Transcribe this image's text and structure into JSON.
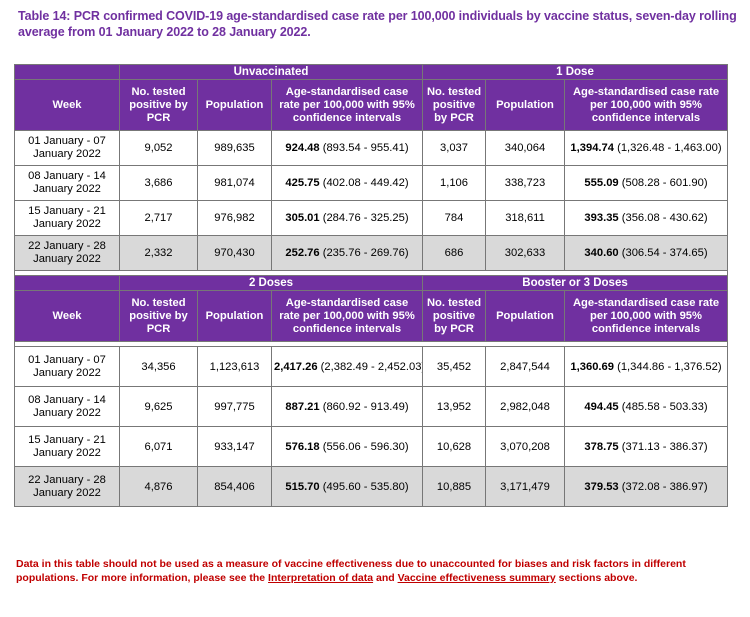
{
  "title": "Table 14: PCR confirmed COVID-19 age-standardised case rate per 100,000 individuals by vaccine status, seven-day rolling average from 01 January 2022 to 28 January 2022.",
  "column_headers": {
    "week": "Week",
    "tested": "No. tested positive by PCR",
    "population": "Population",
    "rate": "Age-standardised case rate per 100,000 with 95% confidence intervals"
  },
  "sections": [
    {
      "groups": [
        "Unvaccinated",
        "1 Dose"
      ],
      "rows": [
        {
          "week": "01 January - 07 January 2022",
          "a_tested": "9,052",
          "a_pop": "989,635",
          "a_rate": "924.48",
          "a_ci": "(893.54 - 955.41)",
          "b_tested": "3,037",
          "b_pop": "340,064",
          "b_rate": "1,394.74",
          "b_ci": "(1,326.48 - 1,463.00)"
        },
        {
          "week": "08 January - 14 January 2022",
          "a_tested": "3,686",
          "a_pop": "981,074",
          "a_rate": "425.75",
          "a_ci": "(402.08 - 449.42)",
          "b_tested": "1,106",
          "b_pop": "338,723",
          "b_rate": "555.09",
          "b_ci": "(508.28 - 601.90)"
        },
        {
          "week": "15 January - 21 January 2022",
          "a_tested": "2,717",
          "a_pop": "976,982",
          "a_rate": "305.01",
          "a_ci": "(284.76 - 325.25)",
          "b_tested": "784",
          "b_pop": "318,611",
          "b_rate": "393.35",
          "b_ci": "(356.08 - 430.62)"
        },
        {
          "week": "22 January - 28 January 2022",
          "a_tested": "2,332",
          "a_pop": "970,430",
          "a_rate": "252.76",
          "a_ci": "(235.76 - 269.76)",
          "b_tested": "686",
          "b_pop": "302,633",
          "b_rate": "340.60",
          "b_ci": "(306.54 - 374.65)"
        }
      ]
    },
    {
      "groups": [
        "2 Doses",
        "Booster or 3 Doses"
      ],
      "rows": [
        {
          "week": "01 January - 07 January 2022",
          "a_tested": "34,356",
          "a_pop": "1,123,613",
          "a_rate": "2,417.26",
          "a_ci": "(2,382.49 - 2,452.03)",
          "b_tested": "35,452",
          "b_pop": "2,847,544",
          "b_rate": "1,360.69",
          "b_ci": "(1,344.86 - 1,376.52)"
        },
        {
          "week": "08 January - 14 January 2022",
          "a_tested": "9,625",
          "a_pop": "997,775",
          "a_rate": "887.21",
          "a_ci": "(860.92 - 913.49)",
          "b_tested": "13,952",
          "b_pop": "2,982,048",
          "b_rate": "494.45",
          "b_ci": "(485.58 - 503.33)"
        },
        {
          "week": "15 January - 21 January 2022",
          "a_tested": "6,071",
          "a_pop": "933,147",
          "a_rate": "576.18",
          "a_ci": "(556.06 - 596.30)",
          "b_tested": "10,628",
          "b_pop": "3,070,208",
          "b_rate": "378.75",
          "b_ci": "(371.13 - 386.37)"
        },
        {
          "week": "22 January - 28 January 2022",
          "a_tested": "4,876",
          "a_pop": "854,406",
          "a_rate": "515.70",
          "a_ci": "(495.60 - 535.80)",
          "b_tested": "10,885",
          "b_pop": "3,171,479",
          "b_rate": "379.53",
          "b_ci": "(372.08 - 386.97)"
        }
      ]
    }
  ],
  "note": {
    "text_before": "Data in this table should not be used as a measure of vaccine effectiveness due to unaccounted for biases and risk factors in different populations. For more information, please see the ",
    "link1": "Interpretation of data",
    "text_mid": " and ",
    "link2": "Vaccine effectiveness summary",
    "text_after": " sections above."
  },
  "colors": {
    "header_bg": "#7030a0",
    "shade_bg": "#d9d9d9",
    "note": "#c00000"
  }
}
